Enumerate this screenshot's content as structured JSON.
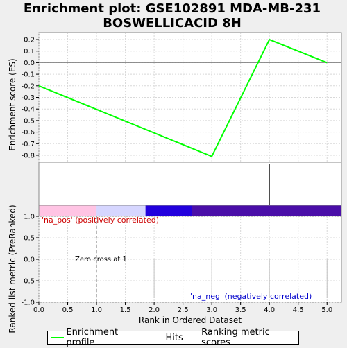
{
  "chart_data": [
    {
      "type": "line",
      "title": "Enrichment plot: GSE102891 MDA-MB-231 BOSWELLICACID 8H",
      "title_lines": [
        "Enrichment plot: GSE102891 MDA-MB-231",
        "BOSWELLICACID 8H"
      ],
      "ylabel": "Enrichment score (ES)",
      "ylim": [
        -0.86,
        0.26
      ],
      "yticks": [
        -0.8,
        -0.7,
        -0.6,
        -0.5,
        -0.4,
        -0.3,
        -0.2,
        -0.1,
        0.0,
        0.1,
        0.2
      ],
      "ytick_labels": [
        "-0.8",
        "-0.7",
        "-0.6",
        "-0.5",
        "-0.4",
        "-0.3",
        "-0.2",
        "-0.1",
        "0.0",
        "0.1",
        "0.2"
      ],
      "grid": true,
      "series": [
        {
          "name": "Enrichment profile",
          "color": "#00ff00",
          "x": [
            0,
            3,
            4,
            5
          ],
          "y": [
            -0.2,
            -0.81,
            0.2,
            0.0
          ]
        }
      ]
    },
    {
      "type": "hits",
      "hits_x": [
        4
      ],
      "color": "#000000",
      "bar_segments": [
        {
          "from": 0.0,
          "to": 1.0,
          "color": "#ffc4e4"
        },
        {
          "from": 1.0,
          "to": 1.85,
          "color": "#d6d6ff"
        },
        {
          "from": 1.85,
          "to": 2.65,
          "color": "#2200dd"
        },
        {
          "from": 2.65,
          "to": 5.25,
          "color": "#4a0ea8"
        }
      ]
    },
    {
      "type": "bar",
      "xlabel": "Rank in Ordered Dataset",
      "ylabel": "Ranked list metric (PreRanked)",
      "xlim": [
        0,
        5.25
      ],
      "ylim": [
        -1.0,
        1.0
      ],
      "xticks": [
        0.0,
        0.5,
        1.0,
        1.5,
        2.0,
        2.5,
        3.0,
        3.5,
        4.0,
        4.5,
        5.0
      ],
      "xtick_labels": [
        "0.0",
        "0.5",
        "1.0",
        "1.5",
        "2.0",
        "2.5",
        "3.0",
        "3.5",
        "4.0",
        "4.5",
        "5.0"
      ],
      "yticks": [
        -1.0,
        -0.5,
        0.0,
        0.5,
        1.0
      ],
      "ytick_labels": [
        "-1.0",
        "-0.5",
        "0.0",
        "0.5",
        "1.0"
      ],
      "grid": true,
      "metric_x": [
        2,
        3,
        4,
        5
      ],
      "zero_cross_x": 1,
      "annotations": {
        "zero_cross": "Zero cross at 1",
        "pos": "'na_pos' (positively correlated)",
        "neg": "'na_neg' (negatively correlated)"
      }
    }
  ],
  "colors": {
    "pos": "#cc0000",
    "neg": "#0000cc",
    "es_line": "#00ff00",
    "hits": "#000000",
    "metric": "#c0c0c0"
  },
  "legend": {
    "items": [
      {
        "label": "Enrichment profile",
        "color": "#00ff00"
      },
      {
        "label": "Hits",
        "color": "#000000"
      },
      {
        "label": "Ranking metric scores",
        "color": "#c0c0c0"
      }
    ]
  }
}
